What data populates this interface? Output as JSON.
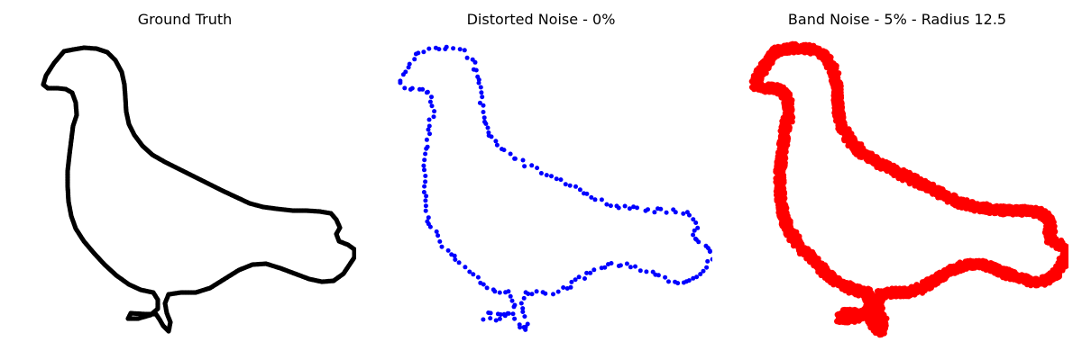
{
  "chart_data": [
    {
      "type": "scatter",
      "title": "Ground Truth",
      "color": "#000000",
      "style": "dense-contour",
      "axes": "off",
      "xlabel": "",
      "ylabel": ""
    },
    {
      "type": "scatter",
      "title": "Distorted Noise - 0%",
      "color": "#0000ff",
      "style": "sparse-points",
      "axes": "off",
      "xlabel": "",
      "ylabel": ""
    },
    {
      "type": "scatter",
      "title": "Band Noise - 5% - Radius 12.5",
      "color": "#ff0000",
      "style": "thick-band",
      "axes": "off",
      "xlabel": "",
      "ylabel": ""
    }
  ]
}
